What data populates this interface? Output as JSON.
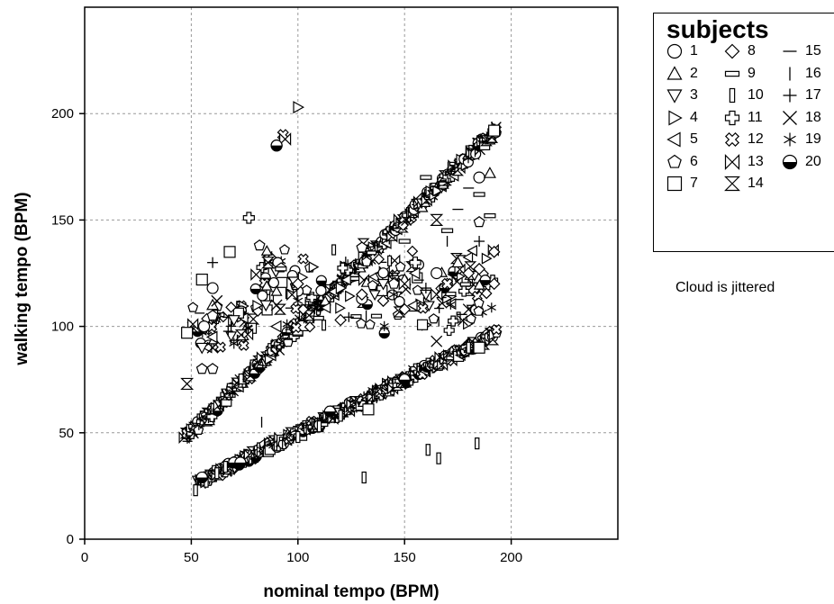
{
  "chart_data": {
    "type": "scatter",
    "title": "",
    "xlabel": "nominal tempo (BPM)",
    "ylabel": "walking tempo (BPM)",
    "xlim": [
      0,
      250
    ],
    "ylim": [
      0,
      250
    ],
    "xticks": [
      0,
      50,
      100,
      150,
      200
    ],
    "yticks": [
      0,
      50,
      100,
      150,
      200
    ],
    "grid": true,
    "legend_title": "subjects",
    "legend_position": "top-right, outside plot",
    "annotation": "Cloud is jittered",
    "series": [
      {
        "name": "1",
        "marker": "circle",
        "points": [
          [
            90,
            185
          ],
          [
            56,
            100
          ],
          [
            60,
            118
          ],
          [
            130,
            113
          ],
          [
            165,
            125
          ],
          [
            185,
            170
          ]
        ]
      },
      {
        "name": "2",
        "marker": "triangle-up",
        "points": [
          [
            190,
            172
          ],
          [
            150,
            122
          ],
          [
            175,
            130
          ],
          [
            60,
            110
          ]
        ]
      },
      {
        "name": "3",
        "marker": "triangle-down",
        "points": [
          [
            55,
            90
          ],
          [
            70,
            103
          ],
          [
            85,
            110
          ],
          [
            140,
            120
          ],
          [
            160,
            115
          ]
        ]
      },
      {
        "name": "4",
        "marker": "triangle-right",
        "points": [
          [
            100,
            203
          ],
          [
            120,
            118
          ]
        ]
      },
      {
        "name": "5",
        "marker": "triangle-left",
        "points": [
          [
            60,
            95
          ],
          [
            90,
            100
          ],
          [
            155,
            125
          ]
        ]
      },
      {
        "name": "6",
        "marker": "pentagon",
        "points": [
          [
            82,
            138
          ],
          [
            55,
            80
          ],
          [
            60,
            80
          ],
          [
            130,
            137
          ],
          [
            185,
            149
          ],
          [
            145,
            120
          ],
          [
            60,
            105
          ]
        ]
      },
      {
        "name": "7",
        "marker": "square",
        "points": [
          [
            48,
            97
          ],
          [
            55,
            122
          ],
          [
            68,
            135
          ],
          [
            192,
            192
          ],
          [
            133,
            61
          ],
          [
            185,
            90
          ]
        ]
      },
      {
        "name": "8",
        "marker": "diamond",
        "points": [
          [
            120,
            103
          ],
          [
            100,
            120
          ],
          [
            150,
            108
          ],
          [
            170,
            120
          ],
          [
            180,
            125
          ],
          [
            192,
            135
          ],
          [
            192,
            120
          ],
          [
            185,
            127
          ],
          [
            140,
            112
          ],
          [
            130,
            115
          ]
        ]
      },
      {
        "name": "9",
        "marker": "dash-rect",
        "points": [
          [
            92,
            127
          ],
          [
            160,
            170
          ],
          [
            185,
            162
          ],
          [
            150,
            140
          ],
          [
            170,
            145
          ],
          [
            190,
            152
          ]
        ]
      },
      {
        "name": "10",
        "marker": "bar-rect",
        "points": [
          [
            52,
            23
          ],
          [
            57,
            27
          ],
          [
            62,
            31
          ],
          [
            66,
            34
          ],
          [
            131,
            29
          ],
          [
            161,
            42
          ],
          [
            166,
            38
          ],
          [
            184,
            45
          ],
          [
            100,
            48
          ],
          [
            110,
            53
          ],
          [
            120,
            58
          ],
          [
            180,
            90
          ]
        ]
      },
      {
        "name": "11",
        "marker": "plus-thick",
        "points": [
          [
            77,
            151
          ],
          [
            155,
            130
          ]
        ]
      },
      {
        "name": "12",
        "marker": "x-thick",
        "points": [
          [
            93,
            190
          ],
          [
            170,
            120
          ]
        ]
      },
      {
        "name": "13",
        "marker": "bowtie",
        "points": [
          [
            94,
            188
          ],
          [
            150,
            120
          ],
          [
            165,
            115
          ]
        ]
      },
      {
        "name": "14",
        "marker": "hourglass",
        "points": [
          [
            48,
            73
          ],
          [
            86,
            130
          ],
          [
            165,
            150
          ]
        ]
      },
      {
        "name": "15",
        "marker": "hline",
        "points": [
          [
            145,
            125
          ],
          [
            180,
            165
          ],
          [
            175,
            155
          ]
        ]
      },
      {
        "name": "16",
        "marker": "vline",
        "points": [
          [
            132,
            105
          ],
          [
            83,
            55
          ],
          [
            170,
            140
          ]
        ]
      },
      {
        "name": "17",
        "marker": "plus",
        "points": [
          [
            60,
            130
          ],
          [
            160,
            118
          ],
          [
            185,
            140
          ]
        ]
      },
      {
        "name": "18",
        "marker": "x",
        "points": [
          [
            60,
            90
          ],
          [
            90,
            110
          ],
          [
            165,
            93
          ],
          [
            180,
            108
          ],
          [
            62,
            112
          ]
        ]
      },
      {
        "name": "19",
        "marker": "asterisk",
        "points": [
          [
            70,
            92
          ],
          [
            100,
            112
          ],
          [
            145,
            115
          ],
          [
            135,
            70
          ]
        ]
      },
      {
        "name": "20",
        "marker": "half-circle",
        "points": [
          [
            55,
            29
          ],
          [
            70,
            36
          ],
          [
            73,
            36
          ],
          [
            115,
            60
          ],
          [
            150,
            75
          ],
          [
            90,
            185
          ]
        ]
      }
    ],
    "clusters": [
      {
        "relation": "y = x",
        "x_range": [
          47,
          193
        ],
        "jitter": 2.5
      },
      {
        "relation": "y = x / 2",
        "x_range": [
          53,
          193
        ],
        "jitter": 2.2
      },
      {
        "relation": "cloud",
        "x_range": [
          50,
          192
        ],
        "y_range": [
          85,
          150
        ]
      }
    ]
  }
}
